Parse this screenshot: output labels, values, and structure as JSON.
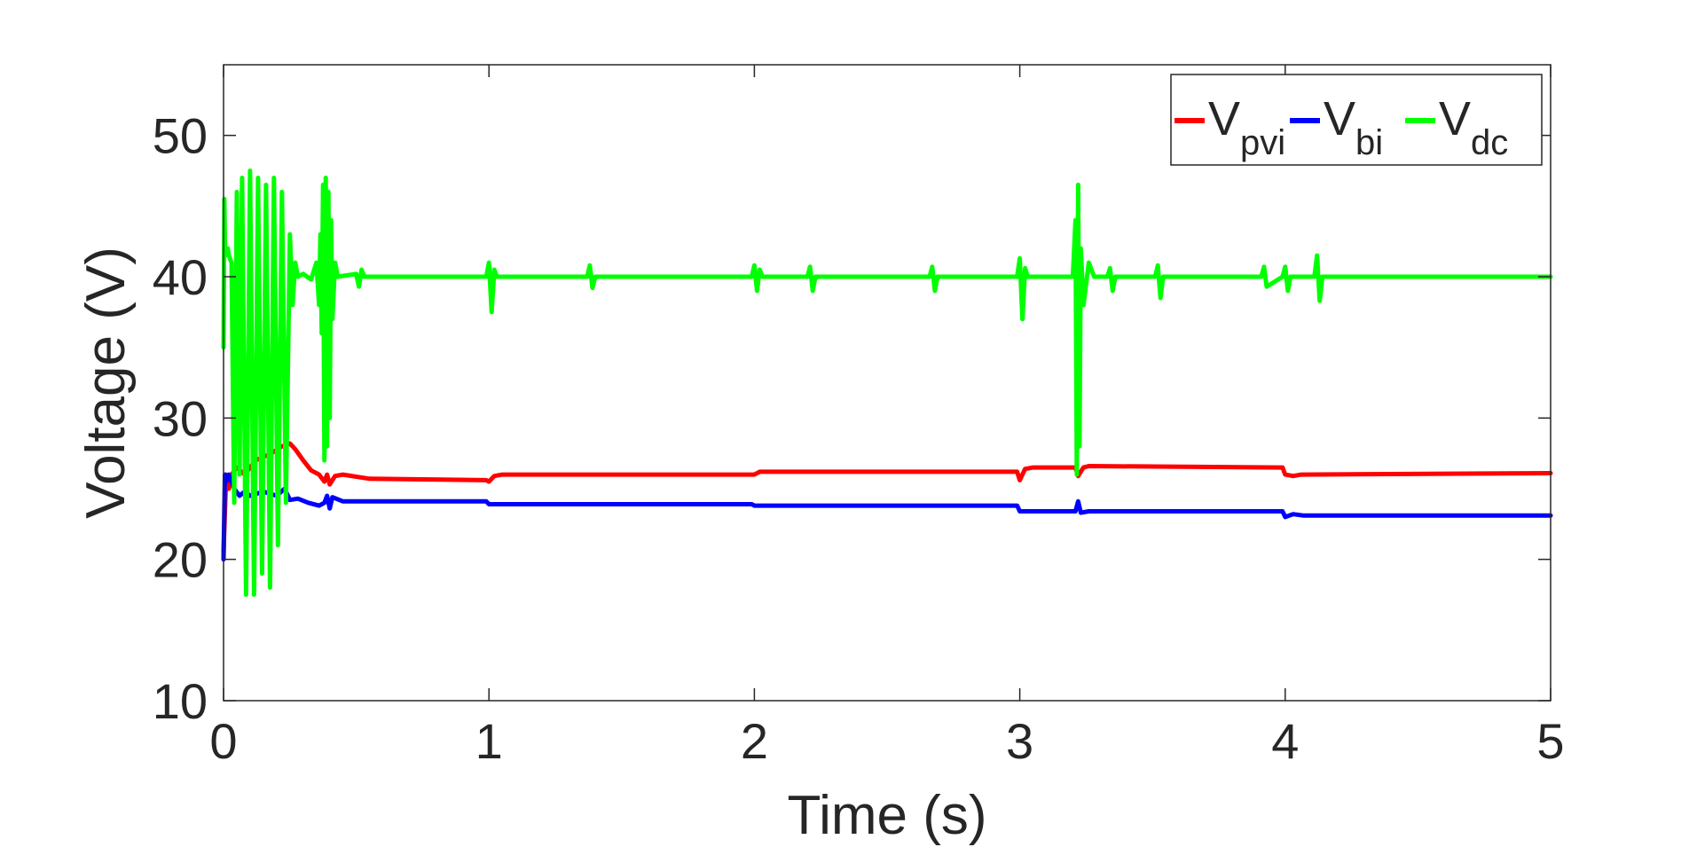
{
  "chart_data": {
    "type": "line",
    "title": "",
    "xlabel": "Time (s)",
    "ylabel": "Voltage (V)",
    "xlim": [
      0,
      5
    ],
    "ylim": [
      10,
      55
    ],
    "xticks": [
      0,
      1,
      2,
      3,
      4,
      5
    ],
    "yticks": [
      10,
      20,
      30,
      40,
      50
    ],
    "grid": false,
    "legend": {
      "placement": "top-right",
      "orientation": "horizontal",
      "entries": [
        {
          "base": "V",
          "sub": "pvi",
          "color": "#ff0000"
        },
        {
          "base": "V",
          "sub": "bi",
          "color": "#0000ff"
        },
        {
          "base": "V",
          "sub": "dc",
          "color": "#00ff00"
        }
      ]
    },
    "series": [
      {
        "name": "Vpvi",
        "color": "#ff0000",
        "x": [
          0,
          0.01,
          0.02,
          0.03,
          0.05,
          0.08,
          0.12,
          0.18,
          0.22,
          0.25,
          0.27,
          0.3,
          0.33,
          0.36,
          0.38,
          0.39,
          0.4,
          0.42,
          0.45,
          0.55,
          0.99,
          1.0,
          1.02,
          1.05,
          1.99,
          2.0,
          2.02,
          2.05,
          2.99,
          3.0,
          3.02,
          3.05,
          3.21,
          3.22,
          3.24,
          3.26,
          3.99,
          4.0,
          4.03,
          4.06,
          5.0
        ],
        "y": [
          20.5,
          26.0,
          25.0,
          26.0,
          26.5,
          26.0,
          27.0,
          27.5,
          28.0,
          28.2,
          27.8,
          27.0,
          26.3,
          26.0,
          25.5,
          26.0,
          25.3,
          25.9,
          26.0,
          25.7,
          25.6,
          25.5,
          25.9,
          26.0,
          26.0,
          26.0,
          26.2,
          26.2,
          26.2,
          25.6,
          26.4,
          26.5,
          26.5,
          25.9,
          26.5,
          26.6,
          26.5,
          26.0,
          25.9,
          26.0,
          26.1
        ]
      },
      {
        "name": "Vbi",
        "color": "#0000ff",
        "x": [
          0,
          0.005,
          0.01,
          0.02,
          0.04,
          0.06,
          0.08,
          0.1,
          0.15,
          0.2,
          0.23,
          0.25,
          0.28,
          0.32,
          0.36,
          0.38,
          0.39,
          0.4,
          0.41,
          0.45,
          0.99,
          1.0,
          1.05,
          1.99,
          2.0,
          2.05,
          2.99,
          3.0,
          3.05,
          3.21,
          3.22,
          3.23,
          3.26,
          3.99,
          4.0,
          4.03,
          4.07,
          5.0
        ],
        "y": [
          20.0,
          26.0,
          25.5,
          26.0,
          25.0,
          24.5,
          24.8,
          24.5,
          24.8,
          24.5,
          25.0,
          24.2,
          24.3,
          24.0,
          23.8,
          24.0,
          24.5,
          23.6,
          24.4,
          24.1,
          24.1,
          23.9,
          23.9,
          23.9,
          23.8,
          23.8,
          23.8,
          23.4,
          23.4,
          23.4,
          24.1,
          23.3,
          23.4,
          23.4,
          23.0,
          23.2,
          23.1,
          23.1
        ]
      },
      {
        "name": "Vdc",
        "color": "#00ff00",
        "x": [
          0,
          0.003,
          0.006,
          0.009,
          0.012,
          0.016,
          0.02,
          0.03,
          0.04,
          0.05,
          0.06,
          0.07,
          0.085,
          0.1,
          0.115,
          0.13,
          0.145,
          0.16,
          0.175,
          0.19,
          0.205,
          0.22,
          0.235,
          0.25,
          0.26,
          0.27,
          0.28,
          0.3,
          0.33,
          0.35,
          0.36,
          0.365,
          0.37,
          0.375,
          0.38,
          0.385,
          0.39,
          0.395,
          0.4,
          0.405,
          0.41,
          0.42,
          0.43,
          0.5,
          0.51,
          0.52,
          0.53,
          0.99,
          1.0,
          1.01,
          1.02,
          1.03,
          1.37,
          1.38,
          1.39,
          1.4,
          1.99,
          2.0,
          2.01,
          2.02,
          2.03,
          2.2,
          2.21,
          2.22,
          2.23,
          2.66,
          2.67,
          2.68,
          2.69,
          2.99,
          3.0,
          3.01,
          3.02,
          3.03,
          3.2,
          3.21,
          3.215,
          3.22,
          3.225,
          3.23,
          3.24,
          3.26,
          3.28,
          3.3,
          3.33,
          3.34,
          3.35,
          3.36,
          3.51,
          3.52,
          3.53,
          3.54,
          3.91,
          3.92,
          3.93,
          3.99,
          4.0,
          4.01,
          4.02,
          4.11,
          4.12,
          4.13,
          4.14,
          5.0
        ],
        "y": [
          35.0,
          45.5,
          41.5,
          42.0,
          41.8,
          42.0,
          41.5,
          41.0,
          24.0,
          46.0,
          26.0,
          47.0,
          17.5,
          47.5,
          17.5,
          47.0,
          19.0,
          46.5,
          18.0,
          47.0,
          21.0,
          46.0,
          24.0,
          43.0,
          38.0,
          41.0,
          40.0,
          40.2,
          39.8,
          41.0,
          38.0,
          43.0,
          36.0,
          46.5,
          27.0,
          47.0,
          28.0,
          46.0,
          30.0,
          44.0,
          37.0,
          41.0,
          40.0,
          40.2,
          39.3,
          40.5,
          40.0,
          40.0,
          41.0,
          37.5,
          40.5,
          40.0,
          40.0,
          40.8,
          39.2,
          40.0,
          40.0,
          40.8,
          39.0,
          40.5,
          40.0,
          40.0,
          40.7,
          39.0,
          40.0,
          40.0,
          40.7,
          39.0,
          40.0,
          40.0,
          41.3,
          37.0,
          40.6,
          40.0,
          40.0,
          44.0,
          26.0,
          46.5,
          28.0,
          42.0,
          38.0,
          41.0,
          40.0,
          40.0,
          40.0,
          40.6,
          39.0,
          40.0,
          40.0,
          40.8,
          38.5,
          40.0,
          40.0,
          40.7,
          39.3,
          40.0,
          40.7,
          39.0,
          40.0,
          40.0,
          41.5,
          38.3,
          40.0,
          40.0
        ]
      }
    ]
  }
}
